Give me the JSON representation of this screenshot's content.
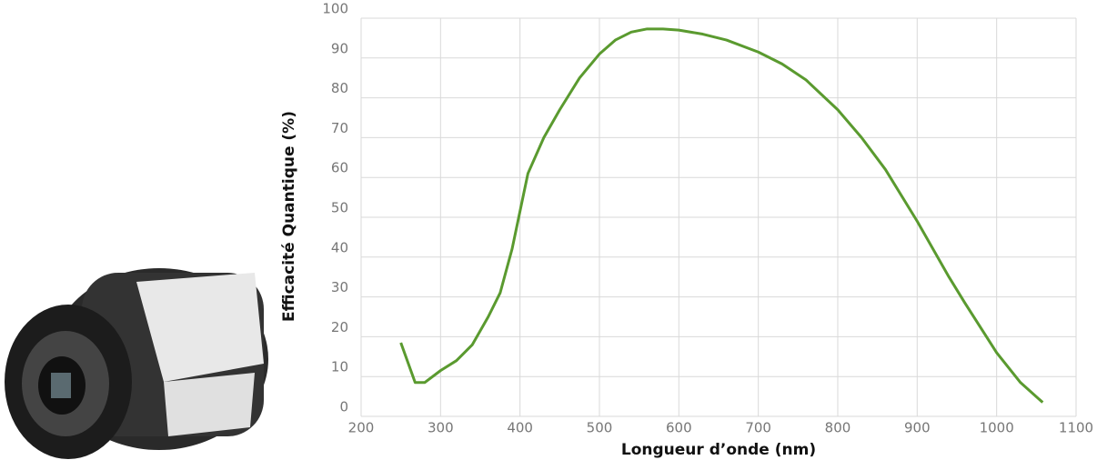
{
  "chart_data": {
    "type": "line",
    "x_label": "Longueur d’onde (nm)",
    "y_label": "Efficacité Quantique (%)",
    "x": [
      250,
      268,
      280,
      300,
      320,
      340,
      360,
      375,
      390,
      410,
      430,
      450,
      475,
      500,
      520,
      540,
      560,
      580,
      600,
      630,
      660,
      700,
      730,
      760,
      800,
      830,
      860,
      900,
      940,
      960,
      1000,
      1030,
      1058
    ],
    "series": [
      {
        "color": "#5a9a2f",
        "values": [
          18.5,
          8.5,
          8.5,
          11.5,
          14,
          18,
          25,
          31,
          42,
          61,
          70,
          77,
          85,
          91,
          94.5,
          96.5,
          97.3,
          97.3,
          97,
          96,
          94.5,
          91.5,
          88.5,
          84.5,
          77,
          70,
          62,
          49,
          35,
          28.5,
          16,
          8.5,
          3.5
        ]
      }
    ],
    "xlim": [
      200,
      1100
    ],
    "xticks": [
      200,
      300,
      400,
      500,
      600,
      700,
      800,
      900,
      1000,
      1100
    ],
    "ylim": [
      0,
      100
    ],
    "yticks": [
      0,
      10,
      20,
      30,
      40,
      50,
      60,
      70,
      80,
      90,
      100
    ],
    "grid": true
  }
}
